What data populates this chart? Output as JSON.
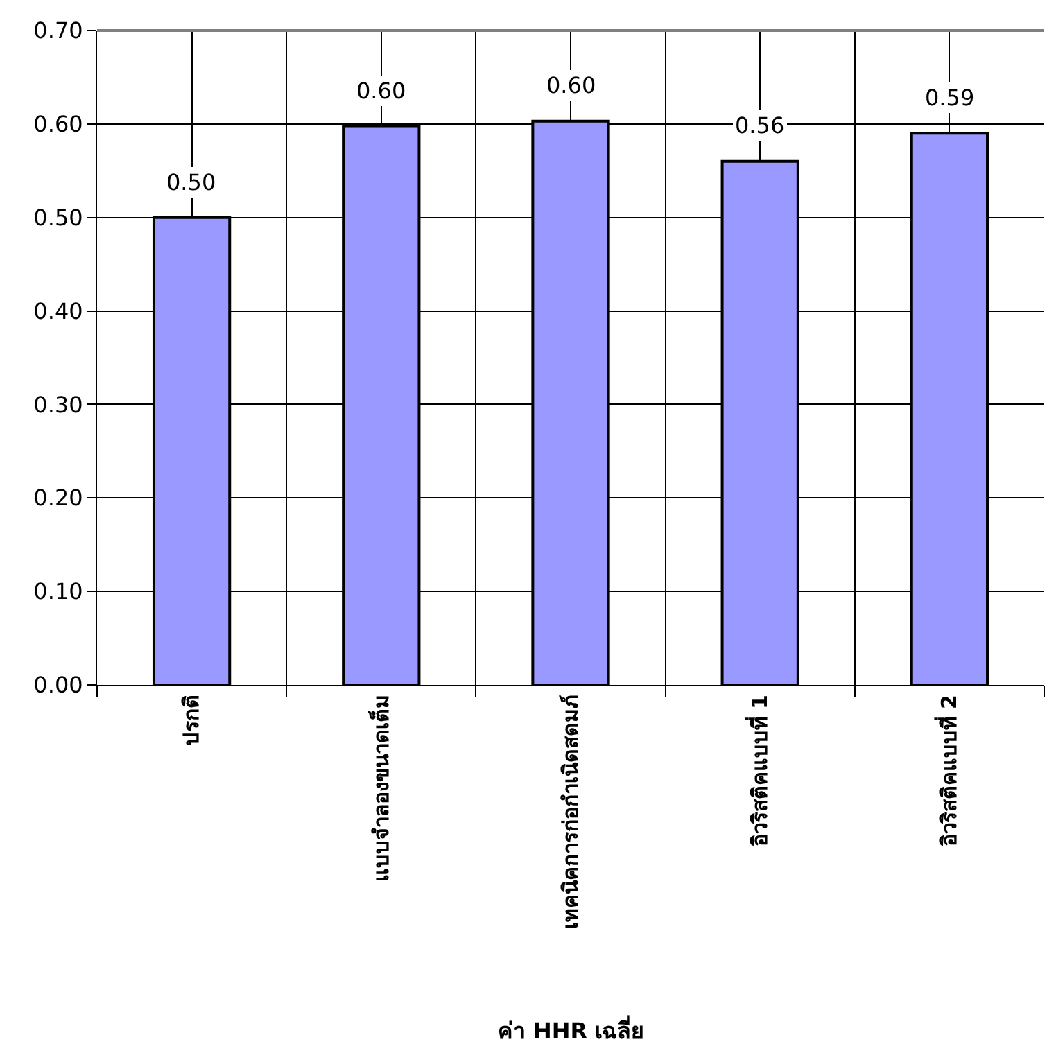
{
  "chart_data": {
    "type": "bar",
    "xlabel": "ค่า HHR เฉลี่ย",
    "categories": [
      "ปรกติ",
      "แบบจำลองขนาดเต็ม",
      "เทคนิคการก่อกำเนิดสดมภ์",
      "อิวริสติคแบบที่ 1",
      "อิวริสติคแบบที่ 2"
    ],
    "values": [
      0.5,
      0.598,
      0.603,
      0.56,
      0.59
    ],
    "value_labels": [
      "0.50",
      "0.60",
      "0.60",
      "0.56",
      "0.59"
    ],
    "color": "#9999ff",
    "ylim": [
      0,
      0.7
    ],
    "yticks": [
      {
        "value": 0,
        "label": "0.00"
      },
      {
        "value": 0.1,
        "label": "0.10"
      },
      {
        "value": 0.2,
        "label": "0.20"
      },
      {
        "value": 0.3,
        "label": "0.30"
      },
      {
        "value": 0.4,
        "label": "0.40"
      },
      {
        "value": 0.5,
        "label": "0.50"
      },
      {
        "value": 0.6,
        "label": "0.60"
      },
      {
        "value": 0.7,
        "label": "0.70"
      }
    ],
    "grid": true
  }
}
